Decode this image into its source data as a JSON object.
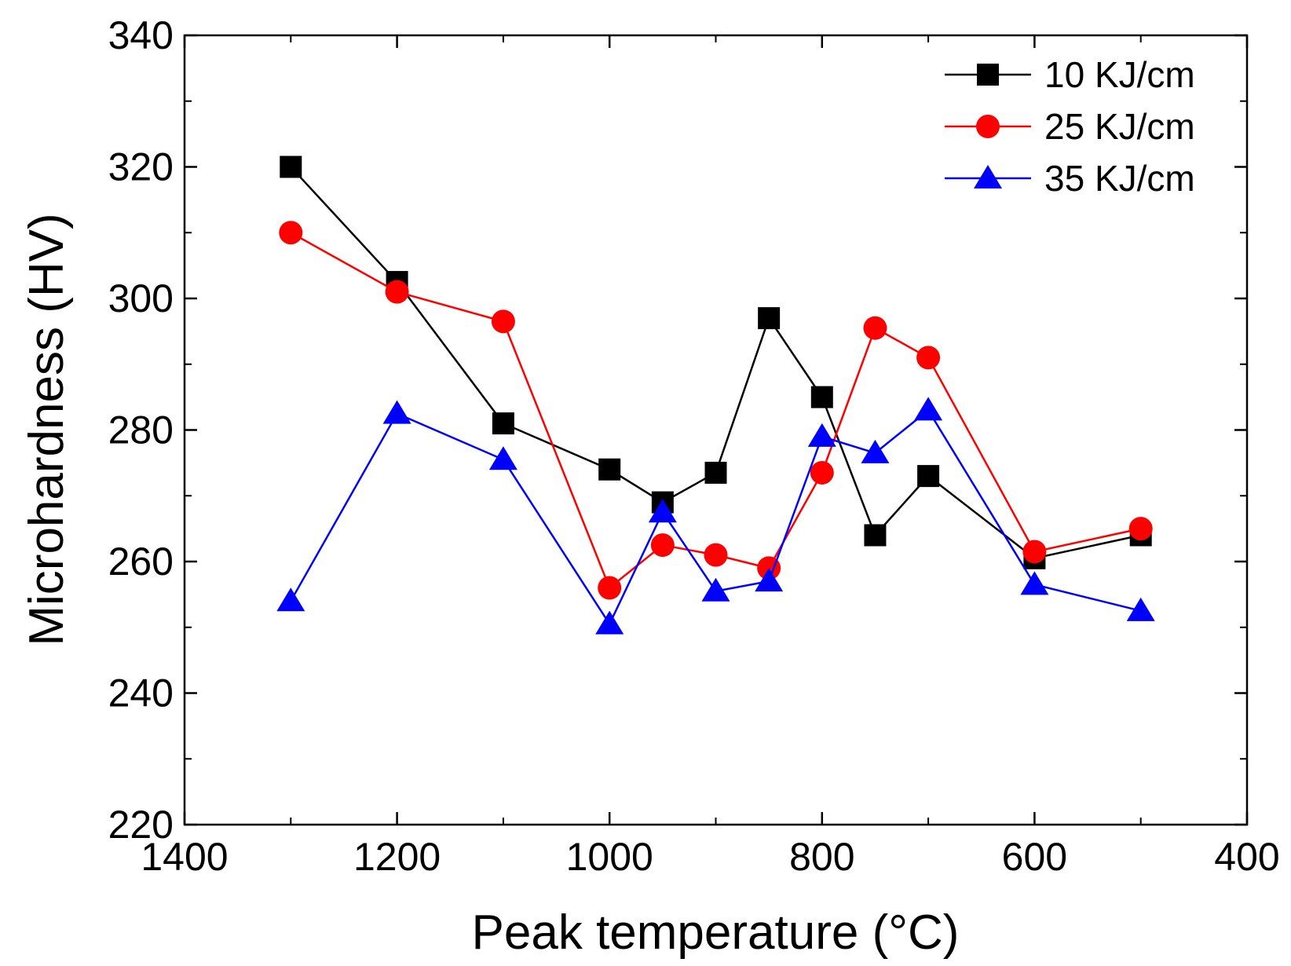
{
  "chart_data": {
    "type": "line",
    "title": "",
    "xlabel": "Peak temperature (°C)",
    "ylabel": "Microhardness (HV)",
    "xlim": [
      1400,
      400
    ],
    "ylim": [
      220,
      340
    ],
    "x_ticks": [
      1400,
      1200,
      1000,
      800,
      600,
      400
    ],
    "x_tick_labels": [
      "1400",
      "1200",
      "1000",
      "800",
      "600",
      "400"
    ],
    "y_ticks": [
      220,
      240,
      260,
      280,
      300,
      320,
      340
    ],
    "y_tick_labels": [
      "220",
      "240",
      "260",
      "280",
      "300",
      "320",
      "340"
    ],
    "grid": false,
    "legend_position": "top-right",
    "x": [
      1300,
      1200,
      1100,
      1000,
      950,
      900,
      850,
      800,
      750,
      700,
      600,
      500
    ],
    "series": [
      {
        "name": "10 KJ/cm",
        "color": "#000000",
        "marker": "square",
        "values": [
          320,
          302.5,
          281,
          274,
          269,
          273.5,
          297,
          285,
          264,
          273,
          260.5,
          264
        ]
      },
      {
        "name": "25 KJ/cm",
        "color": "#ff0000",
        "marker": "circle",
        "values": [
          310,
          301,
          296.5,
          256,
          262.5,
          261,
          259,
          273.5,
          295.5,
          291,
          261.5,
          265
        ]
      },
      {
        "name": "35 KJ/cm",
        "color": "#0000ff",
        "marker": "triangle",
        "values": [
          254,
          282.5,
          275.5,
          250.5,
          267.5,
          255.5,
          257,
          279,
          276.5,
          283,
          256.5,
          252.5
        ]
      }
    ]
  }
}
